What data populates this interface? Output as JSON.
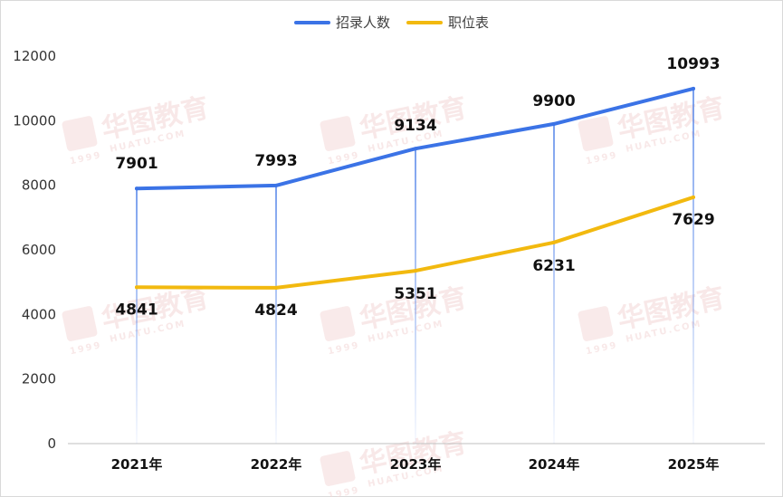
{
  "legend": {
    "series1": "招录人数",
    "series2": "职位表"
  },
  "colors": {
    "series1": "#3b73e6",
    "series2": "#f2b90f",
    "axis": "#bfbfbf"
  },
  "watermark": {
    "text": "华图教育",
    "sub": "HUATU.COM",
    "badge": "1999"
  },
  "chart_data": {
    "type": "line",
    "categories": [
      "2021年",
      "2022年",
      "2023年",
      "2024年",
      "2025年"
    ],
    "series": [
      {
        "name": "招录人数",
        "values": [
          7901,
          7993,
          9134,
          9900,
          10993
        ]
      },
      {
        "name": "职位表",
        "values": [
          4841,
          4824,
          5351,
          6231,
          7629
        ]
      }
    ],
    "ylim": [
      0,
      12000
    ],
    "yticks": [
      0,
      2000,
      4000,
      6000,
      8000,
      10000,
      12000
    ],
    "grid": false,
    "legend_position": "top-center",
    "drop_lines": true
  }
}
